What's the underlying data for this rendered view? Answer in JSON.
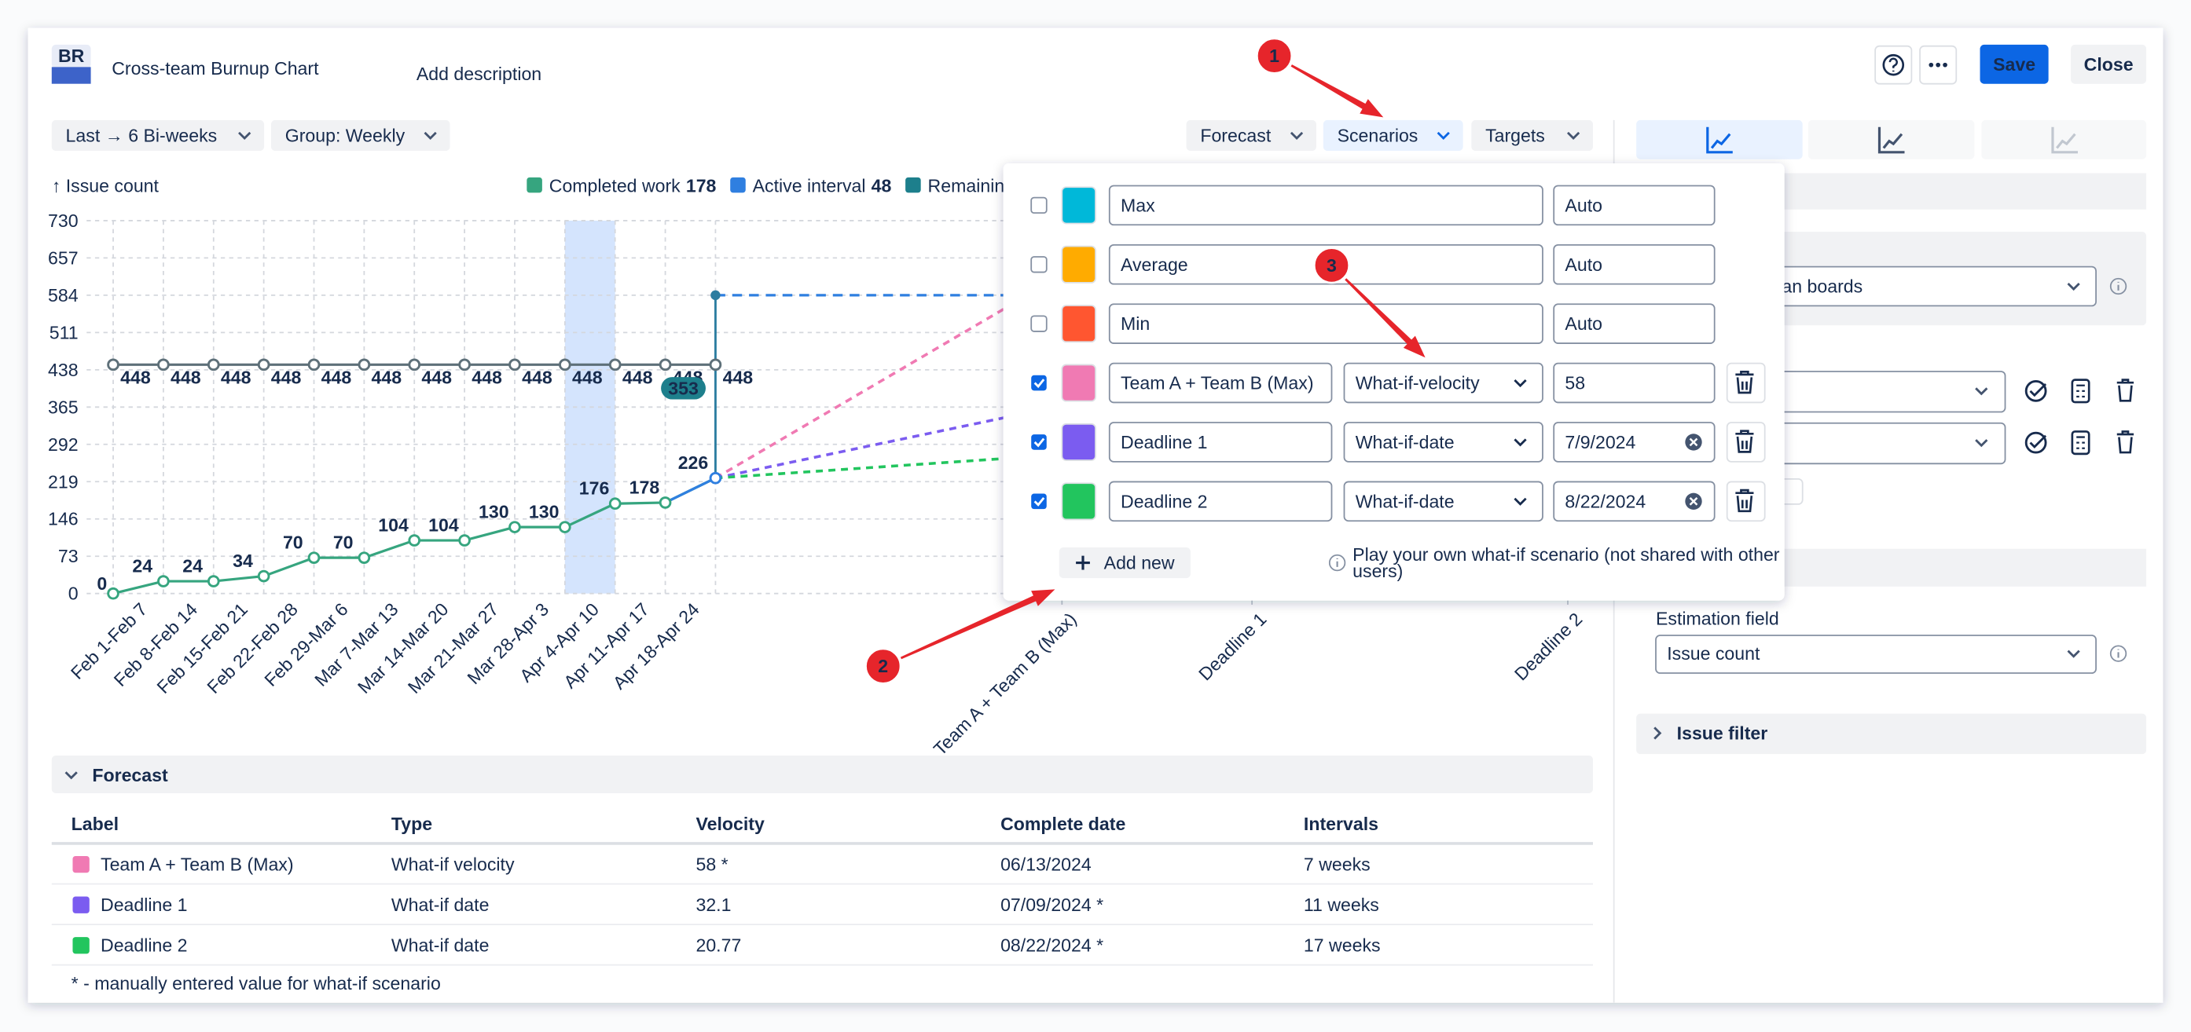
{
  "header": {
    "logo": "BR",
    "title": "Cross-team Burnup Chart",
    "description": "Add description",
    "save": "Save",
    "close": "Close"
  },
  "toolbar": {
    "range": "Last → 6 Bi-weeks",
    "group": "Group: Weekly",
    "forecast": "Forecast",
    "scenarios": "Scenarios",
    "targets": "Targets"
  },
  "chart_data": {
    "type": "line",
    "y_label": "↑ Issue count",
    "legend": [
      {
        "name": "Completed work",
        "value": 178,
        "color": "#36a57f"
      },
      {
        "name": "Active interval",
        "value": 48,
        "color": "#2f7fe0"
      },
      {
        "name": "Remaining wo",
        "color": "#1d7f8c"
      }
    ],
    "categories": [
      "Feb 1-Feb 7",
      "Feb 8-Feb 14",
      "Feb 15-Feb 21",
      "Feb 22-Feb 28",
      "Feb 29-Mar 6",
      "Mar 7-Mar 13",
      "Mar 14-Mar 20",
      "Mar 21-Mar 27",
      "Mar 28-Apr 3",
      "Apr 4-Apr 10",
      "Apr 11-Apr 17",
      "Apr 18-Apr 24",
      null
    ],
    "highlight_category": 9,
    "series": [
      {
        "color": "#5e7079",
        "values": [
          448,
          448,
          448,
          448,
          448,
          448,
          448,
          448,
          448,
          448,
          448,
          448,
          448
        ]
      },
      {
        "color": "#36a57f",
        "values": [
          0,
          24,
          24,
          34,
          70,
          70,
          104,
          104,
          130,
          130,
          176,
          178,
          226
        ]
      }
    ],
    "projection": {
      "value": 584,
      "remaining": 353,
      "color": "#2f7fe0",
      "badge_color": "#1d7f8c"
    },
    "forecast_labels": [
      "Team A + Team B (Max)",
      "Deadline 1",
      "Deadline 2"
    ],
    "ylim": [
      0,
      730
    ],
    "yticks": [
      0,
      73,
      146,
      219,
      292,
      365,
      438,
      511,
      584,
      657,
      730
    ],
    "grid": true
  },
  "scenarios": {
    "rows": [
      {
        "checked": false,
        "color": "#00b8d9",
        "name": "Max",
        "value": "Auto"
      },
      {
        "checked": false,
        "color": "#ffab00",
        "name": "Average",
        "value": "Auto"
      },
      {
        "checked": false,
        "color": "#ff5630",
        "name": "Min",
        "value": "Auto"
      },
      {
        "checked": true,
        "color": "#f07ab3",
        "name": "Team A + Team B (Max)",
        "type": "What-if-velocity",
        "value": "58"
      },
      {
        "checked": true,
        "color": "#7b5cf0",
        "name": "Deadline 1",
        "type": "What-if-date",
        "value": "7/9/2024",
        "clearable": true
      },
      {
        "checked": true,
        "color": "#22c55e",
        "name": "Deadline 2",
        "type": "What-if-date",
        "value": "8/22/2024",
        "clearable": true
      }
    ],
    "add_new": "Add new",
    "info": [
      "Play your own what-if scenario (not shared with other",
      "users)"
    ]
  },
  "forecast_table": {
    "title": "Forecast",
    "columns": [
      "Label",
      "Type",
      "Velocity",
      "Complete date",
      "Intervals"
    ],
    "rows": [
      {
        "color": "#f07ab3",
        "cells": [
          "Team A + Team B (Max)",
          "What-if velocity",
          "58 *",
          "06/13/2024",
          "7 weeks"
        ]
      },
      {
        "color": "#7b5cf0",
        "cells": [
          "Deadline 1",
          "What-if date",
          "32.1",
          "07/09/2024 *",
          "11 weeks"
        ]
      },
      {
        "color": "#22c55e",
        "cells": [
          "Deadline 2",
          "What-if date",
          "20.77",
          "08/22/2024 *",
          "17 weeks"
        ]
      }
    ],
    "footnote": "* - manually entered value for what-if scenario"
  },
  "settings_panel": {
    "board": "pan boards",
    "estimation_label": "Estimation field",
    "estimation": "Issue count",
    "issue_filter": "Issue filter"
  },
  "annotations": [
    "1",
    "2",
    "3"
  ]
}
